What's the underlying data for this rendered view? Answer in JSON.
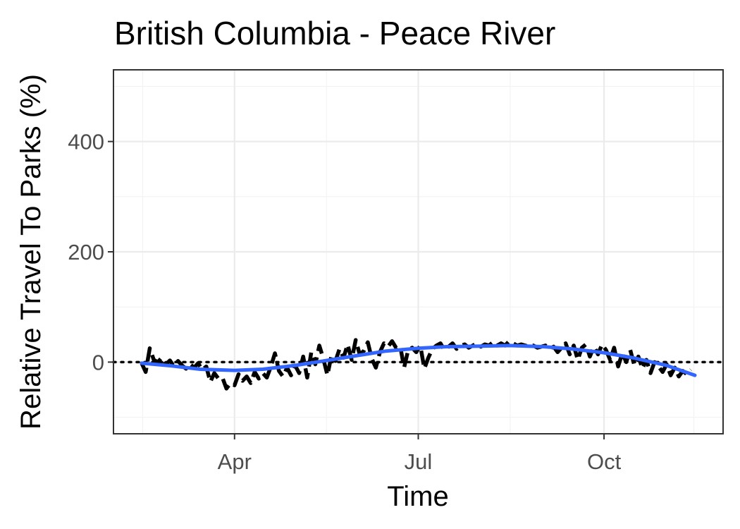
{
  "chart_data": {
    "type": "line",
    "title": "British Columbia - Peace River",
    "xlabel": "Time",
    "ylabel": "Relative Travel To Parks (%)",
    "x_domain": [
      "2020-02-15",
      "2020-11-15"
    ],
    "x_ticks": [
      {
        "date": "2020-04-01",
        "label": "Apr"
      },
      {
        "date": "2020-07-01",
        "label": "Jul"
      },
      {
        "date": "2020-10-01",
        "label": "Oct"
      }
    ],
    "ylim": [
      -130,
      530
    ],
    "y_ticks": [
      0,
      200,
      400
    ],
    "reference_line": {
      "y": 0,
      "style": "dotted"
    },
    "series": [
      {
        "name": "daily",
        "style": "dashed",
        "color": "#000000",
        "points": [
          [
            "2020-02-15",
            -2
          ],
          [
            "2020-02-17",
            -18
          ],
          [
            "2020-02-19",
            25
          ],
          [
            "2020-02-21",
            4
          ],
          [
            "2020-02-23",
            0
          ],
          [
            "2020-02-25",
            8
          ],
          [
            "2020-02-27",
            -4
          ],
          [
            "2020-02-29",
            3
          ],
          [
            "2020-03-02",
            -8
          ],
          [
            "2020-03-04",
            2
          ],
          [
            "2020-03-06",
            -6
          ],
          [
            "2020-03-08",
            -12
          ],
          [
            "2020-03-10",
            -4
          ],
          [
            "2020-03-12",
            -10
          ],
          [
            "2020-03-14",
            -2
          ],
          [
            "2020-03-16",
            -14
          ],
          [
            "2020-03-18",
            -8
          ],
          [
            "2020-03-20",
            -36
          ],
          [
            "2020-03-22",
            -20
          ],
          [
            "2020-03-24",
            -30
          ],
          [
            "2020-03-26",
            -28
          ],
          [
            "2020-03-28",
            -48
          ],
          [
            "2020-03-30",
            -38
          ],
          [
            "2020-04-01",
            -42
          ],
          [
            "2020-04-03",
            -22
          ],
          [
            "2020-04-05",
            -34
          ],
          [
            "2020-04-07",
            -26
          ],
          [
            "2020-04-09",
            -38
          ],
          [
            "2020-04-11",
            -18
          ],
          [
            "2020-04-13",
            -30
          ],
          [
            "2020-04-15",
            -20
          ],
          [
            "2020-04-17",
            -28
          ],
          [
            "2020-04-19",
            -8
          ],
          [
            "2020-04-21",
            16
          ],
          [
            "2020-04-23",
            -16
          ],
          [
            "2020-04-25",
            -26
          ],
          [
            "2020-04-27",
            -10
          ],
          [
            "2020-04-29",
            -24
          ],
          [
            "2020-05-01",
            -6
          ],
          [
            "2020-05-03",
            -20
          ],
          [
            "2020-05-05",
            10
          ],
          [
            "2020-05-07",
            -28
          ],
          [
            "2020-05-09",
            18
          ],
          [
            "2020-05-11",
            -4
          ],
          [
            "2020-05-13",
            30
          ],
          [
            "2020-05-15",
            6
          ],
          [
            "2020-05-17",
            -24
          ],
          [
            "2020-05-19",
            12
          ],
          [
            "2020-05-21",
            2
          ],
          [
            "2020-05-23",
            24
          ],
          [
            "2020-05-25",
            8
          ],
          [
            "2020-05-27",
            32
          ],
          [
            "2020-05-29",
            4
          ],
          [
            "2020-05-31",
            40
          ],
          [
            "2020-06-02",
            14
          ],
          [
            "2020-06-04",
            20
          ],
          [
            "2020-06-06",
            36
          ],
          [
            "2020-06-08",
            6
          ],
          [
            "2020-06-10",
            -10
          ],
          [
            "2020-06-12",
            18
          ],
          [
            "2020-06-14",
            34
          ],
          [
            "2020-06-16",
            28
          ],
          [
            "2020-06-18",
            38
          ],
          [
            "2020-06-20",
            26
          ],
          [
            "2020-06-22",
            30
          ],
          [
            "2020-06-24",
            -10
          ],
          [
            "2020-06-26",
            22
          ],
          [
            "2020-06-28",
            26
          ],
          [
            "2020-06-30",
            18
          ],
          [
            "2020-07-02",
            30
          ],
          [
            "2020-07-04",
            -12
          ],
          [
            "2020-07-06",
            8
          ],
          [
            "2020-07-08",
            24
          ],
          [
            "2020-07-10",
            30
          ],
          [
            "2020-07-12",
            34
          ],
          [
            "2020-07-14",
            22
          ],
          [
            "2020-07-16",
            28
          ],
          [
            "2020-07-18",
            34
          ],
          [
            "2020-07-20",
            24
          ],
          [
            "2020-07-22",
            30
          ],
          [
            "2020-07-24",
            32
          ],
          [
            "2020-07-26",
            26
          ],
          [
            "2020-07-28",
            30
          ],
          [
            "2020-07-30",
            34
          ],
          [
            "2020-08-01",
            28
          ],
          [
            "2020-08-03",
            32
          ],
          [
            "2020-08-05",
            30
          ],
          [
            "2020-08-07",
            36
          ],
          [
            "2020-08-09",
            30
          ],
          [
            "2020-08-11",
            34
          ],
          [
            "2020-08-13",
            30
          ],
          [
            "2020-08-15",
            38
          ],
          [
            "2020-08-17",
            34
          ],
          [
            "2020-08-19",
            30
          ],
          [
            "2020-08-21",
            32
          ],
          [
            "2020-08-23",
            30
          ],
          [
            "2020-08-25",
            28
          ],
          [
            "2020-08-27",
            30
          ],
          [
            "2020-08-29",
            26
          ],
          [
            "2020-08-31",
            28
          ],
          [
            "2020-09-02",
            30
          ],
          [
            "2020-09-04",
            24
          ],
          [
            "2020-09-06",
            28
          ],
          [
            "2020-09-08",
            18
          ],
          [
            "2020-09-10",
            26
          ],
          [
            "2020-09-12",
            34
          ],
          [
            "2020-09-14",
            14
          ],
          [
            "2020-09-16",
            30
          ],
          [
            "2020-09-18",
            4
          ],
          [
            "2020-09-20",
            26
          ],
          [
            "2020-09-22",
            32
          ],
          [
            "2020-09-24",
            10
          ],
          [
            "2020-09-26",
            28
          ],
          [
            "2020-09-28",
            14
          ],
          [
            "2020-09-30",
            32
          ],
          [
            "2020-10-02",
            22
          ],
          [
            "2020-10-04",
            4
          ],
          [
            "2020-10-06",
            26
          ],
          [
            "2020-10-08",
            -8
          ],
          [
            "2020-10-10",
            16
          ],
          [
            "2020-10-12",
            0
          ],
          [
            "2020-10-14",
            22
          ],
          [
            "2020-10-16",
            -6
          ],
          [
            "2020-10-18",
            10
          ],
          [
            "2020-10-20",
            -12
          ],
          [
            "2020-10-22",
            4
          ],
          [
            "2020-10-24",
            -20
          ],
          [
            "2020-10-26",
            0
          ],
          [
            "2020-10-28",
            -8
          ],
          [
            "2020-10-30",
            -18
          ],
          [
            "2020-11-01",
            -4
          ],
          [
            "2020-11-03",
            -24
          ],
          [
            "2020-11-05",
            -10
          ],
          [
            "2020-11-07",
            -26
          ],
          [
            "2020-11-09",
            -16
          ],
          [
            "2020-11-11",
            -22
          ],
          [
            "2020-11-13",
            -14
          ]
        ]
      },
      {
        "name": "smooth",
        "style": "solid",
        "color": "#3366ff",
        "points": [
          [
            "2020-02-15",
            -2
          ],
          [
            "2020-03-01",
            -7
          ],
          [
            "2020-03-15",
            -13
          ],
          [
            "2020-04-01",
            -15
          ],
          [
            "2020-04-15",
            -13
          ],
          [
            "2020-05-01",
            -6
          ],
          [
            "2020-05-15",
            2
          ],
          [
            "2020-06-01",
            12
          ],
          [
            "2020-06-15",
            20
          ],
          [
            "2020-07-01",
            25
          ],
          [
            "2020-07-15",
            28
          ],
          [
            "2020-08-01",
            29
          ],
          [
            "2020-08-15",
            30
          ],
          [
            "2020-09-01",
            28
          ],
          [
            "2020-09-15",
            24
          ],
          [
            "2020-10-01",
            17
          ],
          [
            "2020-10-15",
            8
          ],
          [
            "2020-11-01",
            -6
          ],
          [
            "2020-11-15",
            -24
          ]
        ]
      }
    ]
  }
}
